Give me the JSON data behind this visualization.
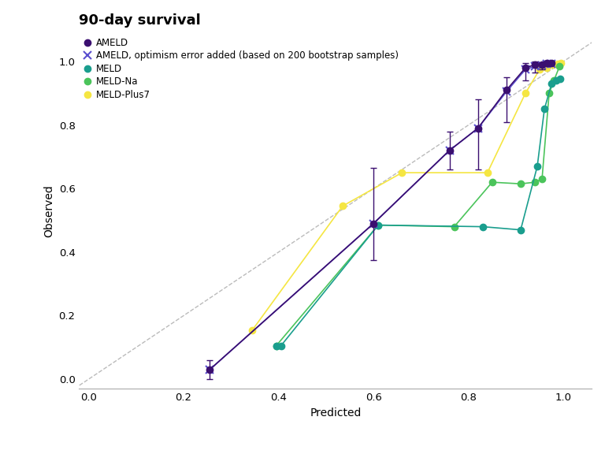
{
  "title": "90-day survival",
  "xlabel": "Predicted",
  "ylabel": "Observed",
  "xlim": [
    -0.02,
    1.06
  ],
  "ylim": [
    -0.03,
    1.09
  ],
  "xticks": [
    0.0,
    0.2,
    0.4,
    0.6,
    0.8,
    1.0
  ],
  "yticks": [
    0.0,
    0.2,
    0.4,
    0.6,
    0.8,
    1.0
  ],
  "ameld_x": [
    0.255,
    0.6,
    0.76,
    0.82,
    0.88,
    0.92,
    0.94,
    0.955,
    0.965,
    0.975
  ],
  "ameld_y": [
    0.03,
    0.49,
    0.72,
    0.79,
    0.91,
    0.98,
    0.99,
    0.99,
    0.995,
    0.995
  ],
  "ameld_yerr_lo": [
    0.03,
    0.115,
    0.06,
    0.13,
    0.1,
    0.04,
    0.025,
    0.015,
    0.01,
    0.005
  ],
  "ameld_yerr_hi": [
    0.03,
    0.175,
    0.06,
    0.09,
    0.04,
    0.015,
    0.01,
    0.008,
    0.005,
    0.005
  ],
  "ameld_opt_x": [
    0.255,
    0.6,
    0.76,
    0.82,
    0.88,
    0.92,
    0.94,
    0.955,
    0.965,
    0.975
  ],
  "ameld_opt_y": [
    0.03,
    0.49,
    0.72,
    0.79,
    0.905,
    0.975,
    0.985,
    0.988,
    0.992,
    0.993
  ],
  "meld_x": [
    0.395,
    0.405,
    0.61,
    0.83,
    0.91,
    0.945,
    0.96,
    0.975,
    0.985,
    0.993
  ],
  "meld_y": [
    0.105,
    0.105,
    0.485,
    0.48,
    0.47,
    0.67,
    0.85,
    0.93,
    0.94,
    0.945
  ],
  "meld_na_x": [
    0.395,
    0.61,
    0.77,
    0.85,
    0.91,
    0.94,
    0.955,
    0.97,
    0.98,
    0.992
  ],
  "meld_na_y": [
    0.105,
    0.485,
    0.48,
    0.62,
    0.615,
    0.62,
    0.63,
    0.9,
    0.94,
    0.985
  ],
  "meld_plus7_x": [
    0.345,
    0.535,
    0.66,
    0.84,
    0.92,
    0.95,
    0.965,
    0.978,
    0.988,
    0.995
  ],
  "meld_plus7_y": [
    0.155,
    0.545,
    0.65,
    0.65,
    0.9,
    0.975,
    0.98,
    0.99,
    0.992,
    0.995
  ],
  "color_ameld": "#3b0f70",
  "color_ameld_opt": "#5a4fcf",
  "color_meld": "#1a9e8e",
  "color_meld_na": "#4bc45b",
  "color_meld_plus7": "#f5e642",
  "legend_labels": [
    "AMELD",
    "AMELD, optimism error added (based on 200 bootstrap samples)",
    "MELD",
    "MELD-Na",
    "MELD-Plus7"
  ]
}
